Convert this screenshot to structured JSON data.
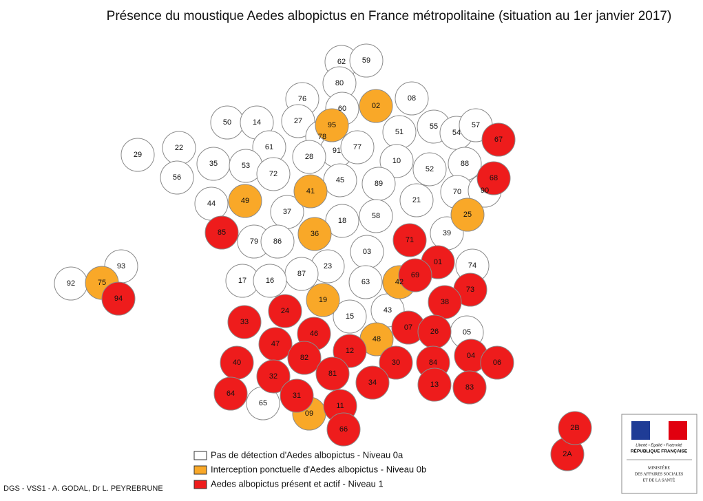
{
  "title": "Présence du moustique Aedes albopictus en France métropolitaine (situation au 1er janvier 2017)",
  "legend": [
    {
      "label": "Pas de détection d'Aedes albopictus - Niveau 0a",
      "color": "#ffffff",
      "departments": [
        "62",
        "59",
        "80",
        "76",
        "60",
        "08",
        "50",
        "14",
        "27",
        "51",
        "55",
        "54",
        "57",
        "22",
        "29",
        "61",
        "78",
        "91",
        "77",
        "10",
        "52",
        "88",
        "35",
        "53",
        "72",
        "28",
        "45",
        "89",
        "56",
        "44",
        "37",
        "21",
        "70",
        "90",
        "18",
        "58",
        "79",
        "86",
        "39",
        "03",
        "23",
        "87",
        "74",
        "17",
        "16",
        "63",
        "43",
        "15",
        "05",
        "65",
        "92",
        "93"
      ]
    },
    {
      "label": "Interception ponctuelle d'Aedes albopictus - Niveau 0b",
      "color": "#f9a828",
      "departments": [
        "02",
        "95",
        "41",
        "49",
        "25",
        "36",
        "42",
        "19",
        "48",
        "09",
        "75"
      ]
    },
    {
      "label": "Aedes albopictus présent et actif - Niveau 1",
      "color": "#ee1c1c",
      "departments": [
        "67",
        "68",
        "85",
        "71",
        "01",
        "69",
        "73",
        "38",
        "24",
        "33",
        "07",
        "26",
        "46",
        "47",
        "12",
        "04",
        "06",
        "82",
        "40",
        "30",
        "84",
        "81",
        "32",
        "34",
        "13",
        "83",
        "64",
        "31",
        "11",
        "66",
        "2A",
        "2B",
        "94"
      ]
    }
  ],
  "credit": "DGS - VSS1 - A. GODAL, Dr L. PEYREBRUNE",
  "logo": {
    "motto": "Liberté • Égalité • Fraternité",
    "republic": "RÉPUBLIQUE FRANÇAISE",
    "ministry": [
      "MINISTÈRE",
      "DES AFFAIRES SOCIALES",
      "ET DE LA SANTÉ"
    ]
  }
}
